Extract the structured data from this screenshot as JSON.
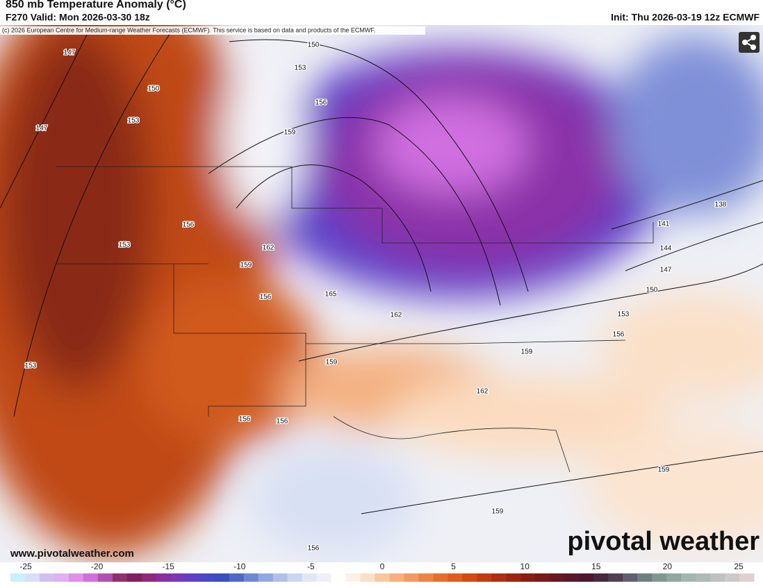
{
  "header": {
    "title": "850 mb Temperature Anomaly (°C)",
    "valid": "F270 Valid: Mon 2026-03-30 18z",
    "init": "Init: Thu 2026-03-19 12z ECMWF"
  },
  "copyright": "(c) 2026 European Centre for Medium-range Weather Forecasts (ECMWF). This service is based on data and products of the ECMWF.",
  "contour_labels": [
    "147",
    "150",
    "147",
    "153",
    "150",
    "153",
    "156",
    "159",
    "156",
    "153",
    "162",
    "159",
    "156",
    "165",
    "162",
    "159",
    "159",
    "162",
    "153",
    "156",
    "156",
    "138",
    "141",
    "144",
    "147",
    "150",
    "153",
    "156",
    "159",
    "159",
    "156"
  ],
  "website": "www.pivotalweather.com",
  "logo": "pivotal weather",
  "colorbar": {
    "ticks": [
      "-25",
      "-20",
      "-15",
      "-10",
      "-5",
      "0",
      "5",
      "10",
      "15",
      "20",
      "25"
    ],
    "colors": [
      "#c8f0f8",
      "#d8e0f8",
      "#d0c0f0",
      "#e0b0f0",
      "#e090e8",
      "#d070d8",
      "#b050b0",
      "#903070",
      "#802060",
      "#902878",
      "#8830a0",
      "#7838b8",
      "#6040c8",
      "#4848c8",
      "#3850c0",
      "#5068c8",
      "#7088d0",
      "#90a8e0",
      "#b0c0e8",
      "#c8d8f0",
      "#e0e8f4",
      "#f0f0f8",
      "#ffffff",
      "#fdf0e6",
      "#fbe0c8",
      "#f8c8a0",
      "#f6b080",
      "#f29a60",
      "#ee8444",
      "#e86e2c",
      "#e05c1c",
      "#d44a14",
      "#c43a10",
      "#b02e10",
      "#9c2410",
      "#8a1c14",
      "#781818",
      "#681820",
      "#5a1828",
      "#4a1830",
      "#4a2840",
      "#504050",
      "#606070",
      "#708080",
      "#809890",
      "#90a8a0",
      "#a0b8b0",
      "#b0b8b8",
      "#c0c0c0",
      "#d0c8c8",
      "#e0d0d0"
    ]
  }
}
